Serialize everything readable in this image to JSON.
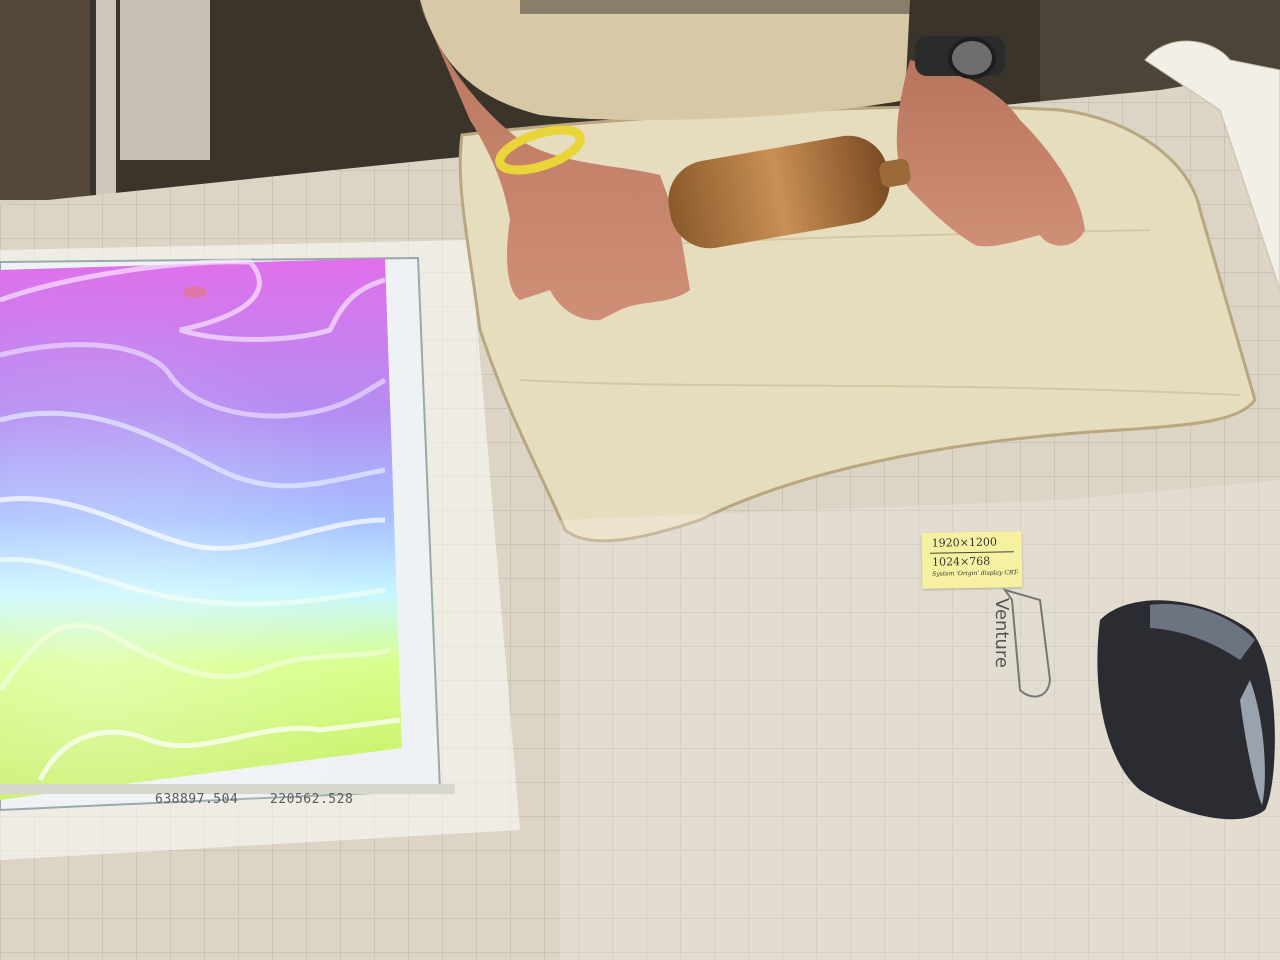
{
  "image": {
    "subject": "projected-topography-model-and-clay-slab",
    "coordinates": {
      "x": "638897.504",
      "y": "220562.528"
    },
    "sticky_note": {
      "line1": "1920×1200",
      "line2": "1024×768",
      "line3": "System 'Origin' display CRT-"
    },
    "logo": "Venture",
    "colors": {
      "table": "#dcd4c4",
      "grid": "#b9b2a4",
      "clay": "#e7dcc0",
      "magenta": "#e06ee8",
      "violet": "#b08df0",
      "blue": "#9fb2ff",
      "cyan": "#c8f6ff",
      "green": "#d6ff8a",
      "lime": "#ccf06a"
    }
  }
}
